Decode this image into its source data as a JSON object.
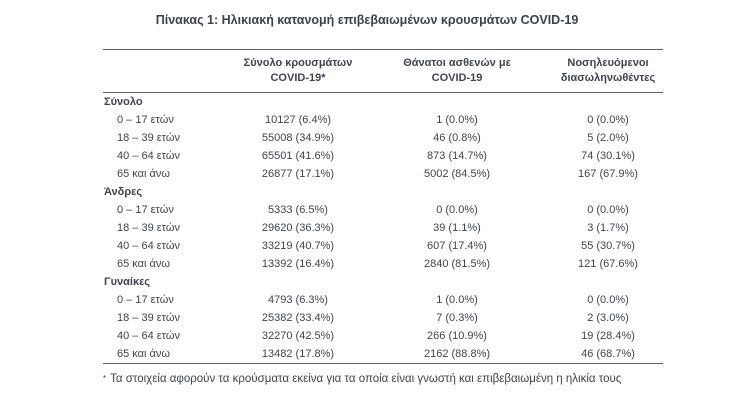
{
  "document": {
    "title": "Πίνακας 1: Ηλικιακή κατανομή επιβεβαιωμένων κρουσμάτων COVID-19"
  },
  "table": {
    "headers": [
      {
        "line1": "Σύνολο κρουσμάτων",
        "line2": "COVID-19*"
      },
      {
        "line1": "Θάνατοι ασθενών με",
        "line2": "COVID-19"
      },
      {
        "line1": "Νοσηλευόμενοι",
        "line2": "διασωληνωθέντες"
      }
    ],
    "sections": [
      {
        "label": "Σύνολο",
        "rows": [
          {
            "label": "0 – 17 ετών",
            "cases": "10127 (6.4%)",
            "deaths": "1 (0.0%)",
            "intubated": "0 (0.0%)"
          },
          {
            "label": "18 – 39 ετών",
            "cases": "55008 (34.9%)",
            "deaths": "46 (0.8%)",
            "intubated": "5 (2.0%)"
          },
          {
            "label": "40 – 64 ετών",
            "cases": "65501 (41.6%)",
            "deaths": "873 (14.7%)",
            "intubated": "74 (30.1%)"
          },
          {
            "label": "65 και άνω",
            "cases": "26877 (17.1%)",
            "deaths": "5002 (84.5%)",
            "intubated": "167 (67.9%)"
          }
        ]
      },
      {
        "label": "Άνδρες",
        "rows": [
          {
            "label": "0 – 17 ετών",
            "cases": "5333 (6.5%)",
            "deaths": "0 (0.0%)",
            "intubated": "0 (0.0%)"
          },
          {
            "label": "18 – 39 ετών",
            "cases": "29620 (36.3%)",
            "deaths": "39 (1.1%)",
            "intubated": "3 (1.7%)"
          },
          {
            "label": "40 – 64 ετών",
            "cases": "33219 (40.7%)",
            "deaths": "607 (17.4%)",
            "intubated": "55 (30.7%)"
          },
          {
            "label": "65 και άνω",
            "cases": "13392 (16.4%)",
            "deaths": "2840 (81.5%)",
            "intubated": "121 (67.6%)"
          }
        ]
      },
      {
        "label": "Γυναίκες",
        "rows": [
          {
            "label": "0 – 17 ετών",
            "cases": "4793 (6.3%)",
            "deaths": "1 (0.0%)",
            "intubated": "0 (0.0%)"
          },
          {
            "label": "18 – 39 ετών",
            "cases": "25382 (33.4%)",
            "deaths": "7 (0.3%)",
            "intubated": "2 (3.0%)"
          },
          {
            "label": "40 – 64 ετών",
            "cases": "32270 (42.5%)",
            "deaths": "266 (10.9%)",
            "intubated": "19 (28.4%)"
          },
          {
            "label": "65 και άνω",
            "cases": "13482 (17.8%)",
            "deaths": "2162 (88.8%)",
            "intubated": "46 (68.7%)"
          }
        ]
      }
    ]
  },
  "footnote": {
    "marker": "*",
    "text": "Τα στοιχεία αφορούν τα κρούσματα εκείνα για τα οποία είναι γνωστή και επιβεβαιωμένη η ηλικία τους"
  },
  "colors": {
    "text": "#3f4550",
    "border": "#5d6166",
    "background": "#ffffff"
  }
}
